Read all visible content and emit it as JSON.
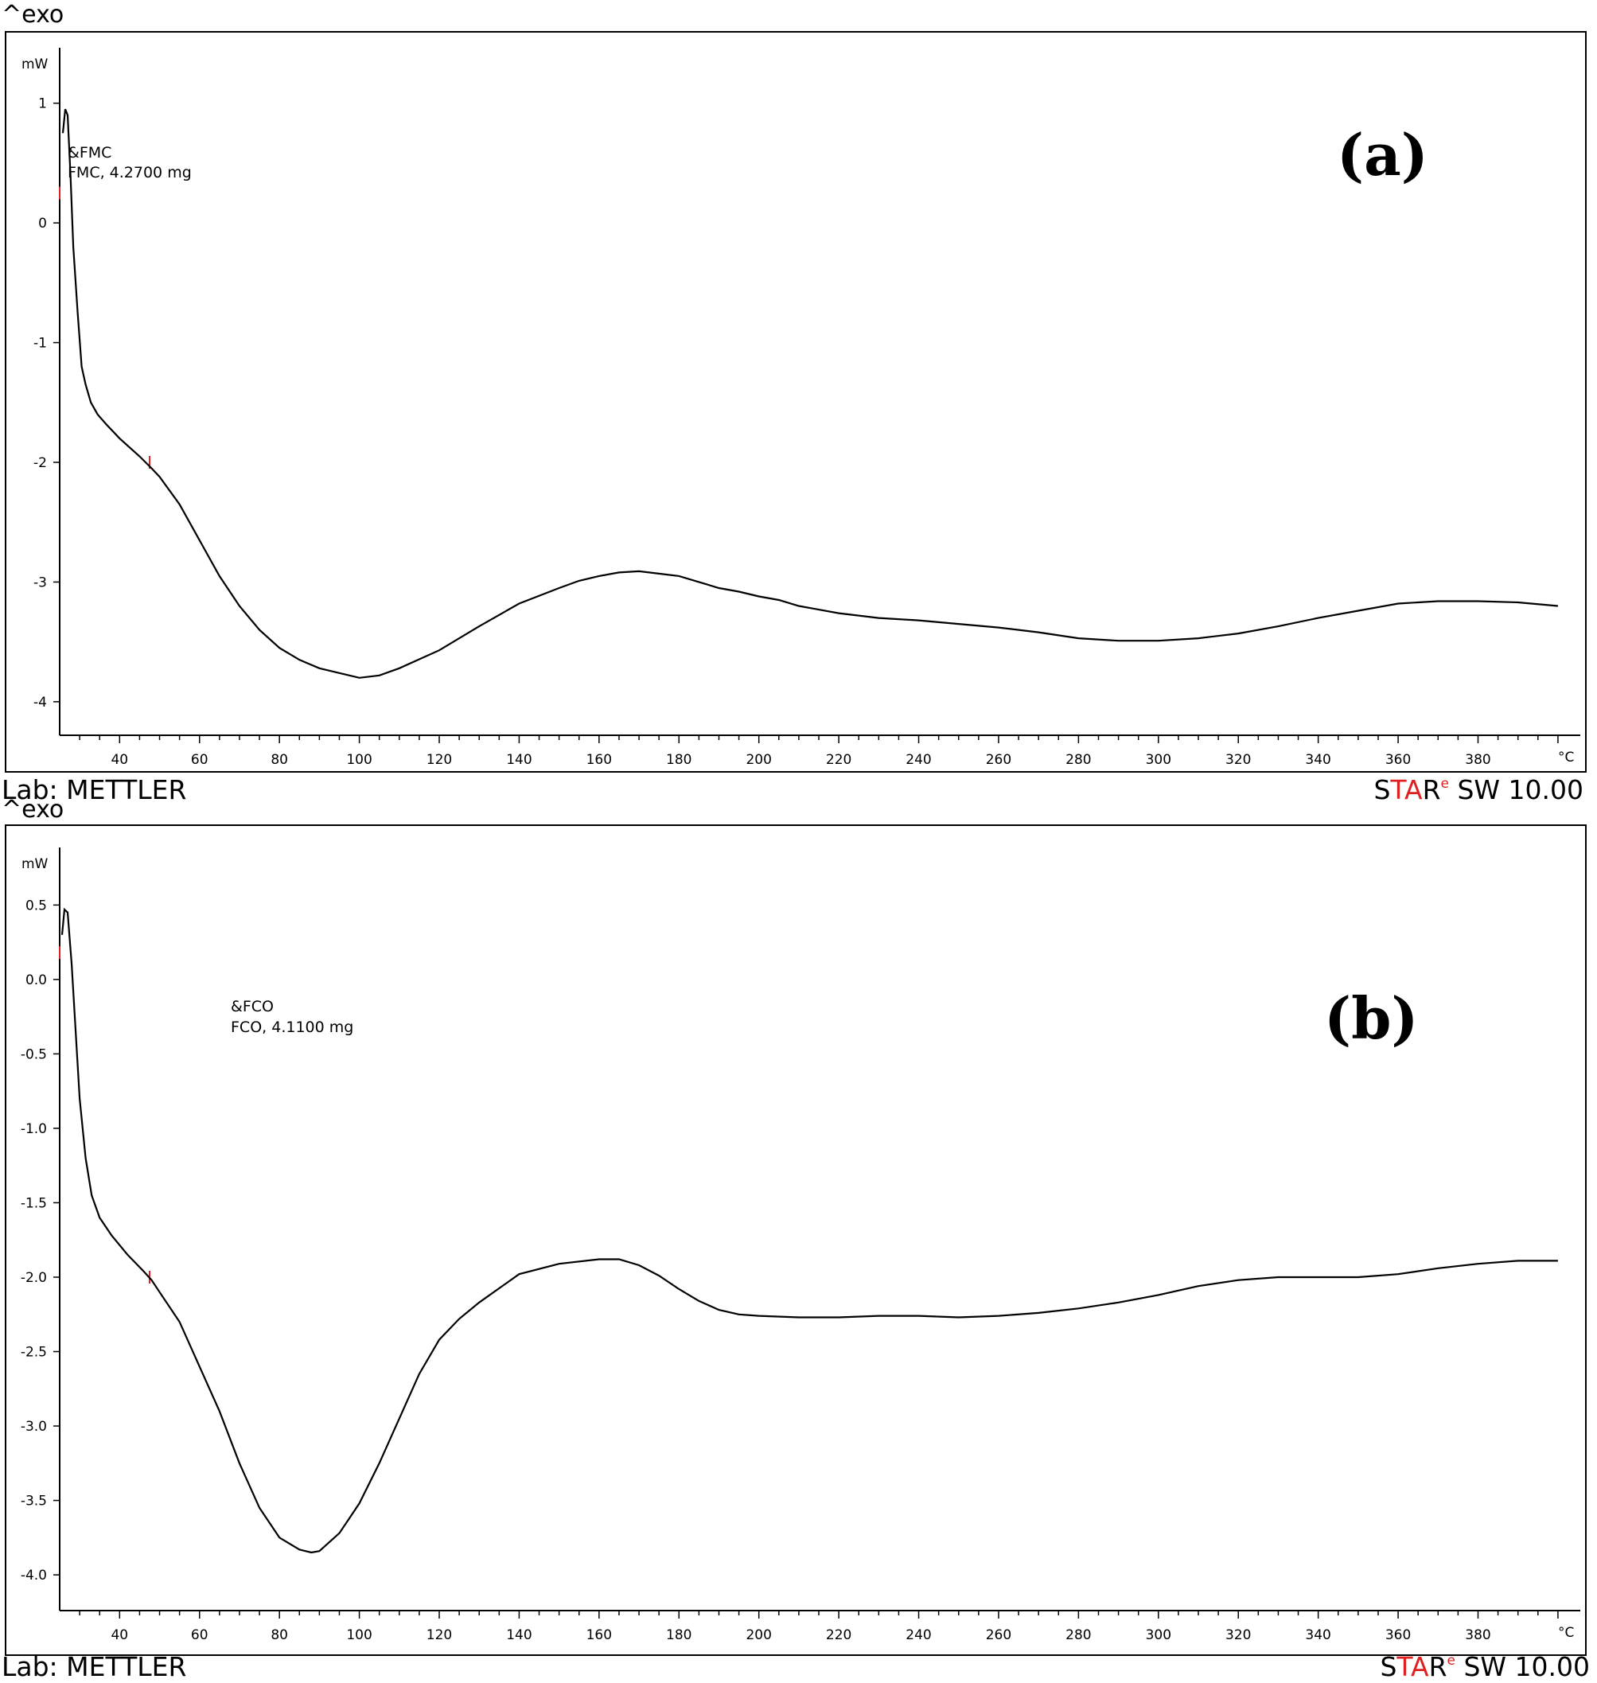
{
  "chart_data": [
    {
      "type": "line",
      "panel_label": "(a)",
      "header": "^exo",
      "footer_left": "Lab: METTLER",
      "footer_right_brand_prefix": "S",
      "footer_right_brand_red": "TA",
      "footer_right_brand_suffix": "R",
      "footer_right_superscript": "e",
      "footer_right_version": " SW 10.00",
      "y_unit": "mW",
      "x_unit": "°C",
      "sample_line1": "&FMC",
      "sample_line2": "FMC, 4.2700 mg",
      "xlim": [
        25,
        404
      ],
      "ylim": [
        -4.28,
        1.43
      ],
      "x_ticks": [
        40,
        60,
        80,
        100,
        120,
        140,
        160,
        180,
        200,
        220,
        240,
        260,
        280,
        300,
        320,
        340,
        360,
        380
      ],
      "x_tick_labels": [
        "40",
        "60",
        "80",
        "100",
        "120",
        "140",
        "160",
        "180",
        "200",
        "220",
        "240",
        "260",
        "280",
        "300",
        "320",
        "340",
        "360",
        "380"
      ],
      "y_ticks": [
        1,
        0,
        -1,
        -2,
        -3,
        -4
      ],
      "y_tick_labels": [
        "1",
        "0",
        "-1",
        "-2",
        "-3",
        "-4"
      ],
      "markers": [
        {
          "x": 25,
          "y": 0.25
        },
        {
          "x": 47.5,
          "y": -2.0
        }
      ],
      "series": [
        {
          "x": [
            25.8,
            26.4,
            27.0,
            27.7,
            28.4,
            29.5,
            30.5,
            31.5,
            32.8,
            34.5,
            36.6,
            40,
            45,
            48,
            50,
            55,
            60,
            65,
            70,
            75,
            80,
            85,
            90,
            95,
            100,
            105,
            110,
            120,
            130,
            140,
            150,
            155,
            160,
            165,
            170,
            175,
            180,
            185,
            190,
            195,
            200,
            205,
            210,
            220,
            230,
            240,
            250,
            260,
            270,
            280,
            290,
            300,
            310,
            320,
            330,
            340,
            350,
            360,
            370,
            380,
            390,
            400
          ],
          "y": [
            0.75,
            0.95,
            0.9,
            0.4,
            -0.2,
            -0.75,
            -1.2,
            -1.35,
            -1.5,
            -1.6,
            -1.68,
            -1.8,
            -1.95,
            -2.05,
            -2.12,
            -2.35,
            -2.65,
            -2.95,
            -3.2,
            -3.4,
            -3.55,
            -3.65,
            -3.72,
            -3.76,
            -3.8,
            -3.78,
            -3.72,
            -3.57,
            -3.37,
            -3.18,
            -3.05,
            -2.99,
            -2.95,
            -2.92,
            -2.91,
            -2.93,
            -2.95,
            -3.0,
            -3.05,
            -3.08,
            -3.12,
            -3.15,
            -3.2,
            -3.26,
            -3.3,
            -3.32,
            -3.35,
            -3.38,
            -3.42,
            -3.47,
            -3.49,
            -3.49,
            -3.47,
            -3.43,
            -3.37,
            -3.3,
            -3.24,
            -3.18,
            -3.16,
            -3.16,
            -3.17,
            -3.2
          ]
        }
      ]
    },
    {
      "type": "line",
      "panel_label": "(b)",
      "header": "^exo",
      "footer_left": "Lab: METTLER",
      "footer_right_brand_prefix": "S",
      "footer_right_brand_red": "TA",
      "footer_right_brand_suffix": "R",
      "footer_right_superscript": "e",
      "footer_right_version": " SW 10.00",
      "y_unit": "mW",
      "x_unit": "°C",
      "sample_line1": "&FCO",
      "sample_line2": "FCO, 4.1100 mg",
      "xlim": [
        25,
        404
      ],
      "ylim": [
        -4.24,
        0.86
      ],
      "x_ticks": [
        40,
        60,
        80,
        100,
        120,
        140,
        160,
        180,
        200,
        220,
        240,
        260,
        280,
        300,
        320,
        340,
        360,
        380
      ],
      "x_tick_labels": [
        "40",
        "60",
        "80",
        "100",
        "120",
        "140",
        "160",
        "180",
        "200",
        "220",
        "240",
        "260",
        "280",
        "300",
        "320",
        "340",
        "360",
        "380"
      ],
      "y_ticks": [
        0.5,
        0.0,
        -0.5,
        -1.0,
        -1.5,
        -2.0,
        -2.5,
        -3.0,
        -3.5,
        -4.0
      ],
      "y_tick_labels": [
        "0.5",
        "0.0",
        "-0.5",
        "-1.0",
        "-1.5",
        "-2.0",
        "-2.5",
        "-3.0",
        "-3.5",
        "-4.0"
      ],
      "markers": [
        {
          "x": 25,
          "y": 0.18
        },
        {
          "x": 47.5,
          "y": -2.0
        }
      ],
      "series": [
        {
          "x": [
            25.6,
            26.2,
            27.0,
            28.0,
            29.0,
            30.0,
            31.5,
            33.0,
            35.0,
            38.0,
            42.0,
            46.0,
            48.0,
            50.0,
            55.0,
            60.0,
            65.0,
            70.0,
            75.0,
            80.0,
            85.0,
            88.0,
            90.0,
            95.0,
            100.0,
            105.0,
            110.0,
            115.0,
            120.0,
            125.0,
            130.0,
            140.0,
            150.0,
            160.0,
            165.0,
            170.0,
            175.0,
            180.0,
            185.0,
            190.0,
            195.0,
            200.0,
            210.0,
            220.0,
            230.0,
            240.0,
            250.0,
            260.0,
            270.0,
            280.0,
            290.0,
            300.0,
            310.0,
            320.0,
            330.0,
            340.0,
            350.0,
            360.0,
            370.0,
            380.0,
            390.0,
            400.0
          ],
          "y": [
            0.3,
            0.47,
            0.45,
            0.1,
            -0.35,
            -0.8,
            -1.2,
            -1.45,
            -1.6,
            -1.72,
            -1.85,
            -1.96,
            -2.02,
            -2.1,
            -2.3,
            -2.6,
            -2.9,
            -3.25,
            -3.55,
            -3.75,
            -3.83,
            -3.85,
            -3.84,
            -3.72,
            -3.52,
            -3.25,
            -2.95,
            -2.65,
            -2.42,
            -2.28,
            -2.17,
            -1.98,
            -1.91,
            -1.88,
            -1.88,
            -1.92,
            -1.99,
            -2.08,
            -2.16,
            -2.22,
            -2.25,
            -2.26,
            -2.27,
            -2.27,
            -2.26,
            -2.26,
            -2.27,
            -2.26,
            -2.24,
            -2.21,
            -2.17,
            -2.12,
            -2.06,
            -2.02,
            -2.0,
            -2.0,
            -2.0,
            -1.98,
            -1.94,
            -1.91,
            -1.89,
            -1.89
          ]
        }
      ]
    }
  ]
}
